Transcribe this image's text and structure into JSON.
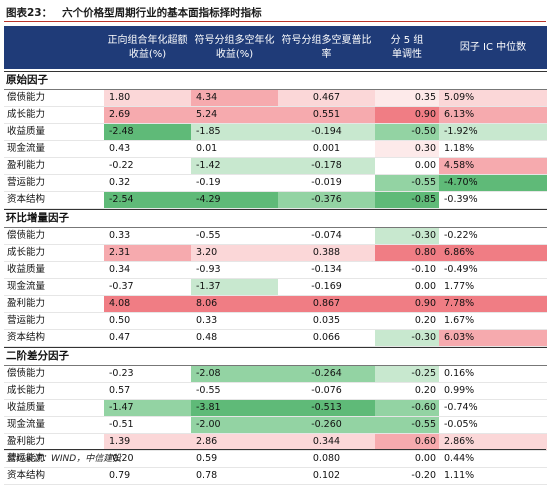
{
  "title": {
    "label": "图表23：",
    "text": "六个价格型周期行业的基本面指标择时指标"
  },
  "colors": {
    "header_bg": "#1f3b78",
    "red_strong": "#f07d84",
    "red_mid": "#f6aaae",
    "red_light": "#fbd7d8",
    "green_strong": "#5fba78",
    "green_mid": "#93d3a3",
    "green_light": "#c8e8cf",
    "rule": "#b8342b"
  },
  "header": [
    "正向组合年化超额收益(%)",
    "符号分组多空年化收益(%)",
    "符号分组多空夏普比率",
    "分 5 组单调性",
    "因子 IC 中位数"
  ],
  "sections": [
    {
      "name": "原始因子",
      "rows": [
        {
          "label": "偿债能力",
          "values": [
            "1.80",
            "4.34",
            "0.467",
            "0.35",
            "5.09%"
          ],
          "colors": [
            "#fbd7d8",
            "#f6aaae",
            "#fbd7d8",
            "#fdeaea",
            "#fbd7d8"
          ]
        },
        {
          "label": "成长能力",
          "values": [
            "2.69",
            "5.24",
            "0.551",
            "0.90",
            "6.13%"
          ],
          "colors": [
            "#f6aaae",
            "#f6aaae",
            "#f6aaae",
            "#f07d84",
            "#f6aaae"
          ]
        },
        {
          "label": "收益质量",
          "values": [
            "-2.48",
            "-1.85",
            "-0.194",
            "-0.50",
            "-1.92%"
          ],
          "colors": [
            "#5fba78",
            "#c8e8cf",
            "#c8e8cf",
            "#93d3a3",
            "#c8e8cf"
          ]
        },
        {
          "label": "现金流量",
          "values": [
            "0.43",
            "0.01",
            "0.001",
            "0.30",
            "1.18%"
          ],
          "colors": [
            "#ffffff",
            "#ffffff",
            "#ffffff",
            "#fdeaea",
            "#ffffff"
          ]
        },
        {
          "label": "盈利能力",
          "values": [
            "-0.22",
            "-1.42",
            "-0.178",
            "0.00",
            "4.58%"
          ],
          "colors": [
            "#ffffff",
            "#c8e8cf",
            "#c8e8cf",
            "#ffffff",
            "#f6aaae"
          ]
        },
        {
          "label": "营运能力",
          "values": [
            "0.32",
            "-0.19",
            "-0.019",
            "-0.55",
            "-4.70%"
          ],
          "colors": [
            "#ffffff",
            "#ffffff",
            "#ffffff",
            "#93d3a3",
            "#5fba78"
          ]
        },
        {
          "label": "资本结构",
          "values": [
            "-2.54",
            "-4.29",
            "-0.376",
            "-0.85",
            "-0.39%"
          ],
          "colors": [
            "#5fba78",
            "#5fba78",
            "#93d3a3",
            "#5fba78",
            "#ffffff"
          ]
        }
      ]
    },
    {
      "name": "环比增量因子",
      "rows": [
        {
          "label": "偿债能力",
          "values": [
            "0.33",
            "-0.55",
            "-0.074",
            "-0.30",
            "-0.22%"
          ],
          "colors": [
            "#ffffff",
            "#ffffff",
            "#ffffff",
            "#c8e8cf",
            "#ffffff"
          ]
        },
        {
          "label": "成长能力",
          "values": [
            "2.31",
            "3.20",
            "0.388",
            "0.80",
            "6.86%"
          ],
          "colors": [
            "#f6aaae",
            "#fbd7d8",
            "#fbd7d8",
            "#f07d84",
            "#f07d84"
          ]
        },
        {
          "label": "收益质量",
          "values": [
            "0.34",
            "-0.93",
            "-0.134",
            "-0.10",
            "-0.49%"
          ],
          "colors": [
            "#ffffff",
            "#ffffff",
            "#ffffff",
            "#ffffff",
            "#ffffff"
          ]
        },
        {
          "label": "现金流量",
          "values": [
            "-0.37",
            "-1.37",
            "-0.169",
            "0.00",
            "1.77%"
          ],
          "colors": [
            "#ffffff",
            "#c8e8cf",
            "#ffffff",
            "#ffffff",
            "#ffffff"
          ]
        },
        {
          "label": "盈利能力",
          "values": [
            "4.08",
            "8.06",
            "0.867",
            "0.90",
            "7.78%"
          ],
          "colors": [
            "#f07d84",
            "#f07d84",
            "#f07d84",
            "#f07d84",
            "#f07d84"
          ]
        },
        {
          "label": "营运能力",
          "values": [
            "0.50",
            "0.33",
            "0.035",
            "0.20",
            "1.67%"
          ],
          "colors": [
            "#ffffff",
            "#ffffff",
            "#ffffff",
            "#ffffff",
            "#ffffff"
          ]
        },
        {
          "label": "资本结构",
          "values": [
            "0.47",
            "0.48",
            "0.066",
            "-0.30",
            "6.03%"
          ],
          "colors": [
            "#ffffff",
            "#ffffff",
            "#ffffff",
            "#c8e8cf",
            "#f6aaae"
          ]
        }
      ]
    },
    {
      "name": "二阶差分因子",
      "rows": [
        {
          "label": "偿债能力",
          "values": [
            "-0.23",
            "-2.08",
            "-0.264",
            "-0.25",
            "0.16%"
          ],
          "colors": [
            "#ffffff",
            "#93d3a3",
            "#93d3a3",
            "#c8e8cf",
            "#ffffff"
          ]
        },
        {
          "label": "成长能力",
          "values": [
            "0.57",
            "-0.55",
            "-0.076",
            "0.20",
            "0.99%"
          ],
          "colors": [
            "#ffffff",
            "#ffffff",
            "#ffffff",
            "#ffffff",
            "#ffffff"
          ]
        },
        {
          "label": "收益质量",
          "values": [
            "-1.47",
            "-3.81",
            "-0.513",
            "-0.60",
            "-0.74%"
          ],
          "colors": [
            "#93d3a3",
            "#5fba78",
            "#5fba78",
            "#93d3a3",
            "#ffffff"
          ]
        },
        {
          "label": "现金流量",
          "values": [
            "-0.51",
            "-2.00",
            "-0.260",
            "-0.55",
            "-0.05%"
          ],
          "colors": [
            "#ffffff",
            "#93d3a3",
            "#93d3a3",
            "#93d3a3",
            "#ffffff"
          ]
        },
        {
          "label": "盈利能力",
          "values": [
            "1.39",
            "2.86",
            "0.344",
            "0.60",
            "2.86%"
          ],
          "colors": [
            "#fbd7d8",
            "#fbd7d8",
            "#fbd7d8",
            "#f6aaae",
            "#fbd7d8"
          ]
        },
        {
          "label": "营运能力",
          "values": [
            "-0.20",
            "0.59",
            "0.080",
            "0.00",
            "0.44%"
          ],
          "colors": [
            "#ffffff",
            "#ffffff",
            "#ffffff",
            "#ffffff",
            "#ffffff"
          ]
        },
        {
          "label": "资本结构",
          "values": [
            "0.79",
            "0.78",
            "0.102",
            "-0.20",
            "1.11%"
          ],
          "colors": [
            "#ffffff",
            "#ffffff",
            "#ffffff",
            "#ffffff",
            "#ffffff"
          ]
        }
      ]
    }
  ],
  "source": "资料来源：WIND，中信建投"
}
